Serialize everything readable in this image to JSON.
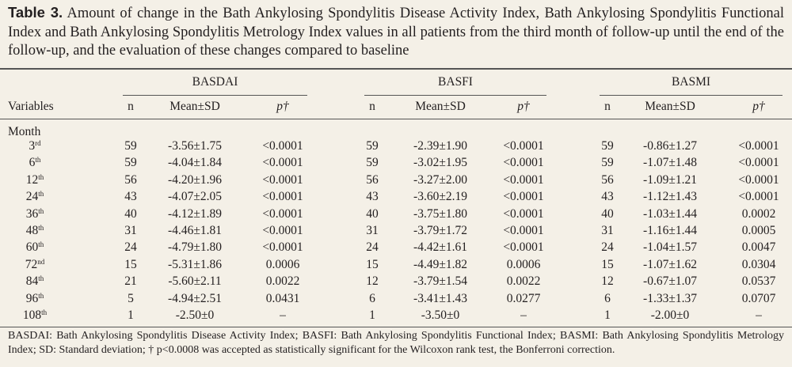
{
  "caption": {
    "label": "Table 3.",
    "text": "Amount of change in the Bath Ankylosing Spondylitis Disease Activity Index, Bath Ankylosing Spondylitis Functional Index and Bath Ankylosing Spondylitis Metrology Index values in all patients from the third month of follow-up until the end of the follow-up, and the evaluation of these changes compared to baseline"
  },
  "table": {
    "groups": [
      "BASDAI",
      "BASFI",
      "BASMI"
    ],
    "row_header": "Variables",
    "subheaders": [
      "n",
      "Mean±SD",
      "p†",
      "n",
      "Mean±SD",
      "p†",
      "n",
      "Mean±SD",
      "p†"
    ],
    "section": "Month",
    "rows": [
      {
        "month": "3",
        "suffix": "rd",
        "cells": [
          "59",
          "-3.56±1.75",
          "<0.0001",
          "59",
          "-2.39±1.90",
          "<0.0001",
          "59",
          "-0.86±1.27",
          "<0.0001"
        ]
      },
      {
        "month": "6",
        "suffix": "th",
        "cells": [
          "59",
          "-4.04±1.84",
          "<0.0001",
          "59",
          "-3.02±1.95",
          "<0.0001",
          "59",
          "-1.07±1.48",
          "<0.0001"
        ]
      },
      {
        "month": "12",
        "suffix": "th",
        "cells": [
          "56",
          "-4.20±1.96",
          "<0.0001",
          "56",
          "-3.27±2.00",
          "<0.0001",
          "56",
          "-1.09±1.21",
          "<0.0001"
        ]
      },
      {
        "month": "24",
        "suffix": "th",
        "cells": [
          "43",
          "-4.07±2.05",
          "<0.0001",
          "43",
          "-3.60±2.19",
          "<0.0001",
          "43",
          "-1.12±1.43",
          "<0.0001"
        ]
      },
      {
        "month": "36",
        "suffix": "th",
        "cells": [
          "40",
          "-4.12±1.89",
          "<0.0001",
          "40",
          "-3.75±1.80",
          "<0.0001",
          "40",
          "-1.03±1.44",
          "0.0002"
        ]
      },
      {
        "month": "48",
        "suffix": "th",
        "cells": [
          "31",
          "-4.46±1.81",
          "<0.0001",
          "31",
          "-3.79±1.72",
          "<0.0001",
          "31",
          "-1.16±1.44",
          "0.0005"
        ]
      },
      {
        "month": "60",
        "suffix": "th",
        "cells": [
          "24",
          "-4.79±1.80",
          "<0.0001",
          "24",
          "-4.42±1.61",
          "<0.0001",
          "24",
          "-1.04±1.57",
          "0.0047"
        ]
      },
      {
        "month": "72",
        "suffix": "nd",
        "cells": [
          "15",
          "-5.31±1.86",
          "0.0006",
          "15",
          "-4.49±1.82",
          "0.0006",
          "15",
          "-1.07±1.62",
          "0.0304"
        ]
      },
      {
        "month": "84",
        "suffix": "th",
        "cells": [
          "21",
          "-5.60±2.11",
          "0.0022",
          "12",
          "-3.79±1.54",
          "0.0022",
          "12",
          "-0.67±1.07",
          "0.0537"
        ]
      },
      {
        "month": "96",
        "suffix": "th",
        "cells": [
          "5",
          "-4.94±2.51",
          "0.0431",
          "6",
          "-3.41±1.43",
          "0.0277",
          "6",
          "-1.33±1.37",
          "0.0707"
        ]
      },
      {
        "month": "108",
        "suffix": "th",
        "cells": [
          "1",
          "-2.50±0",
          "–",
          "1",
          "-3.50±0",
          "–",
          "1",
          "-2.00±0",
          "–"
        ]
      }
    ]
  },
  "footnote": "BASDAI: Bath Ankylosing Spondylitis Disease Activity Index; BASFI: Bath Ankylosing Spondylitis Functional Index; BASMI: Bath Ankylosing Spondylitis Metrology Index; SD: Standard deviation; † p<0.0008 was accepted as statistically significant for the Wilcoxon rank test, the Bonferroni correction."
}
